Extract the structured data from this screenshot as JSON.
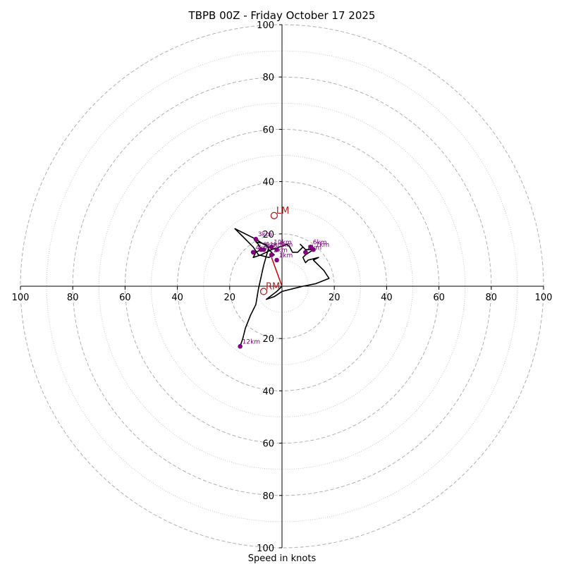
{
  "chart_data": {
    "type": "hodograph",
    "title": "TBPB 00Z - Friday October 17 2025",
    "xlabel": "Speed in knots",
    "units": "knots",
    "range": [
      -100,
      100
    ],
    "major_rings": [
      20,
      40,
      60,
      80,
      100
    ],
    "minor_rings": [
      10,
      30,
      50,
      70,
      90
    ],
    "axis_ticks": [
      "100",
      "80",
      "60",
      "40",
      "20",
      "20",
      "40",
      "60",
      "80",
      "100"
    ],
    "x_tick_values": [
      -100,
      -80,
      -60,
      -40,
      -20,
      20,
      40,
      60,
      80,
      100
    ],
    "y_tick_values": [
      100,
      80,
      60,
      40,
      20,
      -20,
      -40,
      -60,
      -80,
      -100
    ],
    "y_tick_labels": [
      "100",
      "80",
      "60",
      "40",
      "20",
      "20",
      "40",
      "60",
      "80",
      "100"
    ],
    "hodograph": [
      [
        0,
        0
      ],
      [
        -2,
        -2
      ],
      [
        -6,
        -5
      ],
      [
        -3,
        -4
      ],
      [
        0,
        -2
      ],
      [
        4,
        -1
      ],
      [
        8,
        0
      ],
      [
        13,
        1
      ],
      [
        18,
        3
      ],
      [
        16,
        6
      ],
      [
        12,
        10
      ],
      [
        14,
        11
      ],
      [
        10,
        10
      ],
      [
        9,
        9
      ],
      [
        8,
        11
      ],
      [
        9,
        12
      ],
      [
        12,
        14
      ],
      [
        9,
        14
      ],
      [
        7,
        16
      ],
      [
        8,
        15
      ],
      [
        7,
        14
      ],
      [
        6,
        13
      ],
      [
        4,
        13
      ],
      [
        3,
        15
      ],
      [
        2,
        16
      ],
      [
        -1,
        15
      ],
      [
        -4,
        14
      ],
      [
        -6,
        13
      ],
      [
        -8,
        12
      ],
      [
        -11,
        11
      ],
      [
        -10,
        13
      ],
      [
        -8,
        14
      ],
      [
        -9,
        16
      ],
      [
        -10,
        17
      ],
      [
        -6,
        16
      ],
      [
        -5,
        14
      ],
      [
        -4,
        13
      ],
      [
        -3,
        12
      ],
      [
        -5,
        11
      ],
      [
        -9,
        12
      ],
      [
        -11,
        15
      ],
      [
        -13,
        17
      ],
      [
        -15,
        19
      ],
      [
        -17,
        21
      ],
      [
        -18,
        22
      ],
      [
        -10,
        18
      ],
      [
        -7,
        16
      ],
      [
        -5,
        15
      ],
      [
        -7,
        8
      ],
      [
        -9,
        -1
      ],
      [
        -10,
        -7
      ],
      [
        -12,
        -11
      ],
      [
        -14,
        -16
      ],
      [
        -15,
        -20
      ],
      [
        -16,
        -23
      ]
    ],
    "height_markers": [
      {
        "label": "1km",
        "x": -2,
        "y": 10
      },
      {
        "label": "2km",
        "x": -4,
        "y": 12
      },
      {
        "label": "3km",
        "x": -10,
        "y": 18
      },
      {
        "label": "4km",
        "x": -11,
        "y": 13
      },
      {
        "label": "5km",
        "x": -2,
        "y": 14
      },
      {
        "label": "6km",
        "x": 11,
        "y": 15
      },
      {
        "label": "7km",
        "x": 12,
        "y": 14
      },
      {
        "label": "8km",
        "x": 9,
        "y": 13
      },
      {
        "label": "9km",
        "x": -8,
        "y": 14
      },
      {
        "label": "10km",
        "x": -4,
        "y": 15
      },
      {
        "label": "11km",
        "x": -7,
        "y": 14
      },
      {
        "label": "12km",
        "x": -16,
        "y": -23
      }
    ],
    "bunkers_motion": [
      {
        "label": "LM",
        "x": -3,
        "y": 27
      },
      {
        "label": "RM",
        "x": -7,
        "y": -2
      }
    ],
    "mean_wind_line": [
      [
        0,
        0
      ],
      [
        -4,
        11
      ]
    ],
    "colors": {
      "hodograph": "#000000",
      "markers": "#800080",
      "storm_motion": "#b22222",
      "mean_line": "#cc0000",
      "grid": "#b0b0b0"
    }
  }
}
